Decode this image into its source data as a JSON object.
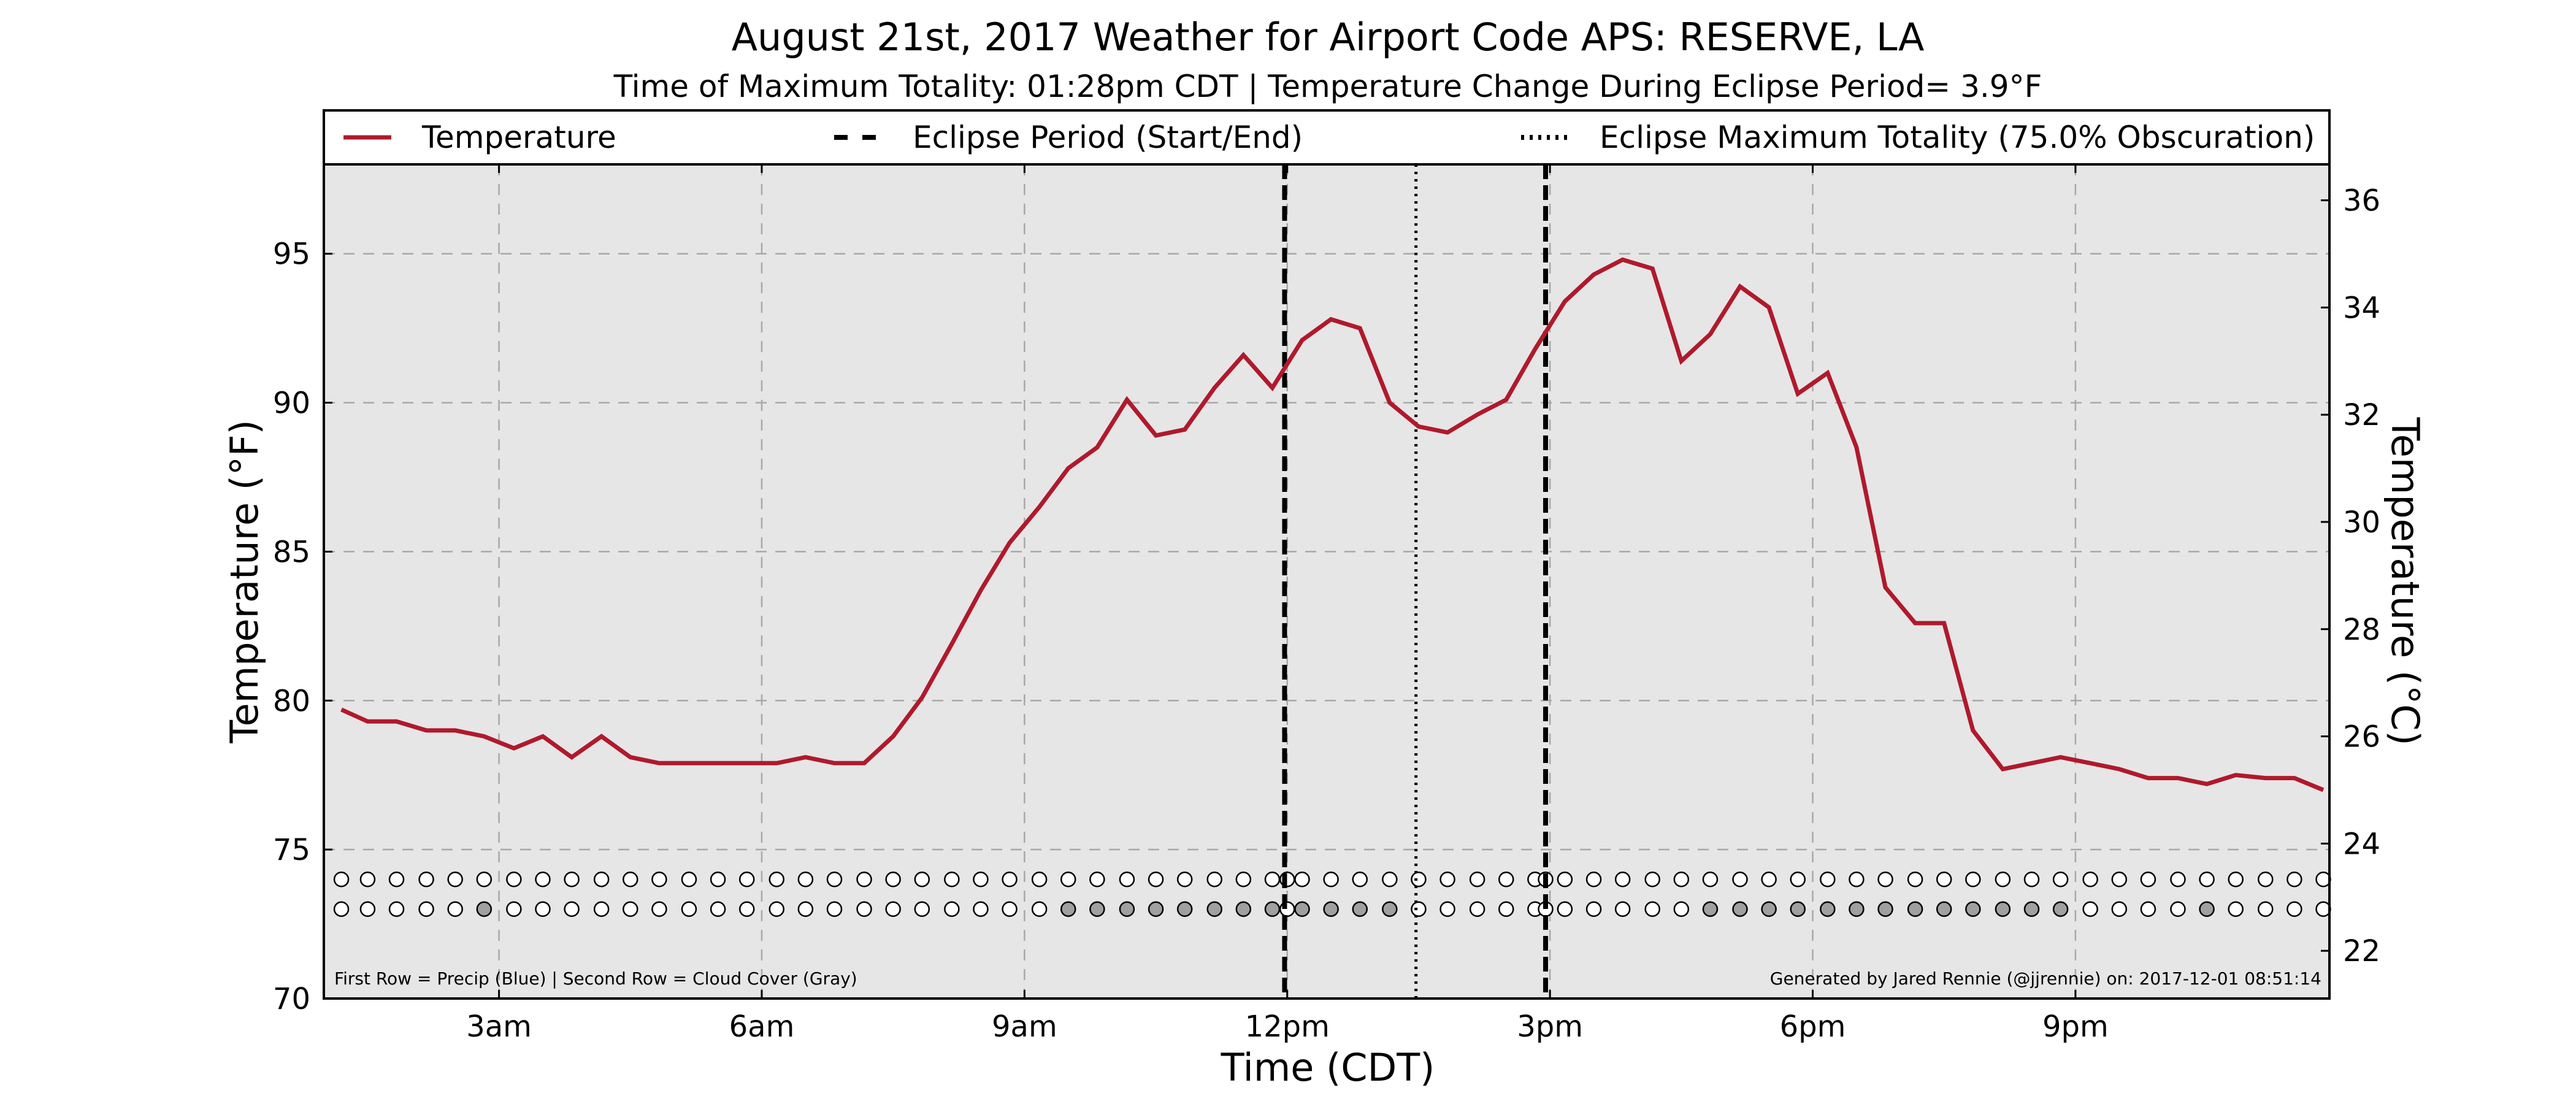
{
  "chart_data": {
    "type": "line",
    "title": "August 21st, 2017 Weather for Airport Code APS: RESERVE, LA",
    "subtitle": "Time of Maximum Totality: 01:28pm CDT | Temperature Change During Eclipse Period= 3.9°F",
    "xlabel": "Time (CDT)",
    "ylabel_left": "Temperature (°F)",
    "ylabel_right": "Temperature (°C)",
    "ylim": [
      70,
      98
    ],
    "ylim_right_c": [
      21.11,
      36.67
    ],
    "xlim_hours": [
      1.0,
      23.9
    ],
    "x_ticks": [
      {
        "hour": 3,
        "label": "3am"
      },
      {
        "hour": 6,
        "label": "6am"
      },
      {
        "hour": 9,
        "label": "9am"
      },
      {
        "hour": 12,
        "label": "12pm"
      },
      {
        "hour": 15,
        "label": "3pm"
      },
      {
        "hour": 18,
        "label": "6pm"
      },
      {
        "hour": 21,
        "label": "9pm"
      }
    ],
    "y_ticks_left": [
      "70",
      "75",
      "80",
      "85",
      "90",
      "95"
    ],
    "y_ticks_right": [
      "22",
      "24",
      "26",
      "28",
      "30",
      "32",
      "34",
      "36"
    ],
    "grid": true,
    "legend": {
      "placement": "top",
      "items": [
        {
          "label": "Temperature",
          "style": "solid",
          "color": "#b0192c"
        },
        {
          "label": "Eclipse Period (Start/End)",
          "style": "dashed",
          "color": "#000000"
        },
        {
          "label": "Eclipse Maximum Totality (75.0% Obscuration)",
          "style": "dotted",
          "color": "#000000"
        }
      ]
    },
    "series": [
      {
        "name": "Temperature",
        "color": "#b0192c",
        "x_hours": [
          1.2,
          1.5,
          1.83,
          2.17,
          2.5,
          2.83,
          3.17,
          3.5,
          3.83,
          4.17,
          4.5,
          4.83,
          5.17,
          5.5,
          5.83,
          6.17,
          6.5,
          6.83,
          7.17,
          7.5,
          7.83,
          8.17,
          8.5,
          8.83,
          9.17,
          9.5,
          9.83,
          10.17,
          10.5,
          10.83,
          11.17,
          11.5,
          11.83,
          12.17,
          12.5,
          12.83,
          13.17,
          13.5,
          13.83,
          14.17,
          14.5,
          14.83,
          15.17,
          15.5,
          15.83,
          16.17,
          16.5,
          16.83,
          17.17,
          17.5,
          17.83,
          18.17,
          18.5,
          18.83,
          19.17,
          19.5,
          19.83,
          20.17,
          20.5,
          20.83,
          21.17,
          21.5,
          21.83,
          22.17,
          22.5,
          22.83,
          23.17,
          23.5,
          23.83
        ],
        "values_f": [
          79.7,
          79.3,
          79.3,
          79.0,
          79.0,
          78.8,
          78.4,
          78.8,
          78.1,
          78.8,
          78.1,
          77.9,
          77.9,
          77.9,
          77.9,
          77.9,
          78.1,
          77.9,
          77.9,
          78.8,
          80.1,
          81.9,
          83.7,
          85.3,
          86.5,
          87.8,
          88.5,
          90.1,
          88.9,
          89.1,
          90.5,
          91.6,
          90.5,
          92.1,
          92.8,
          92.5,
          90.0,
          89.2,
          89.0,
          89.6,
          90.1,
          91.8,
          93.4,
          94.3,
          94.8,
          94.5,
          91.4,
          92.3,
          93.9,
          93.2,
          90.3,
          91.0,
          88.5,
          83.8,
          82.6,
          82.6,
          79.0,
          77.7,
          77.9,
          78.1,
          77.9,
          77.7,
          77.4,
          77.4,
          77.2,
          77.5,
          77.4,
          77.4,
          77.0
        ]
      }
    ],
    "eclipse": {
      "start_hour": 11.97,
      "end_hour": 14.95,
      "max_hour": 13.47,
      "max_label": "01:28pm CDT",
      "obscuration_pct": 75.0,
      "temperature_change_f": 3.9
    },
    "indicator_rows": {
      "row1_y_f": 74.0,
      "row2_y_f": 73.0,
      "x_hours": [
        1.2,
        1.5,
        1.83,
        2.17,
        2.5,
        2.83,
        3.17,
        3.5,
        3.83,
        4.17,
        4.5,
        4.83,
        5.17,
        5.5,
        5.83,
        6.17,
        6.5,
        6.83,
        7.17,
        7.5,
        7.83,
        8.17,
        8.5,
        8.83,
        9.17,
        9.5,
        9.83,
        10.17,
        10.5,
        10.83,
        11.17,
        11.5,
        11.83,
        12.0,
        12.17,
        12.5,
        12.83,
        13.17,
        13.5,
        13.83,
        14.17,
        14.5,
        14.83,
        14.95,
        15.17,
        15.5,
        15.83,
        16.17,
        16.5,
        16.83,
        17.17,
        17.5,
        17.83,
        18.17,
        18.5,
        18.83,
        19.17,
        19.5,
        19.83,
        20.17,
        20.5,
        20.83,
        21.17,
        21.5,
        21.83,
        22.17,
        22.5,
        22.83,
        23.17,
        23.5,
        23.83
      ],
      "precip_filled": [],
      "cloud_filled_hours": [
        2.83,
        9.5,
        9.83,
        10.17,
        10.5,
        10.83,
        11.17,
        11.5,
        11.83,
        12.17,
        12.5,
        12.83,
        13.17,
        16.83,
        17.17,
        17.5,
        17.83,
        18.17,
        18.5,
        18.83,
        19.17,
        19.5,
        19.83,
        20.17,
        20.5,
        20.83,
        22.5
      ],
      "precip_color": "#1f4fd6",
      "cloud_color": "#a0a0a0"
    },
    "footnote_left": "First Row = Precip (Blue) | Second Row = Cloud Cover (Gray)",
    "footnote_right": "Generated by Jared Rennie (@jjrennie) on: 2017-12-01 08:51:14"
  },
  "colors": {
    "plot_bg": "#e6e6e6",
    "grid": "#a8a8a8",
    "temperature": "#b0192c"
  }
}
